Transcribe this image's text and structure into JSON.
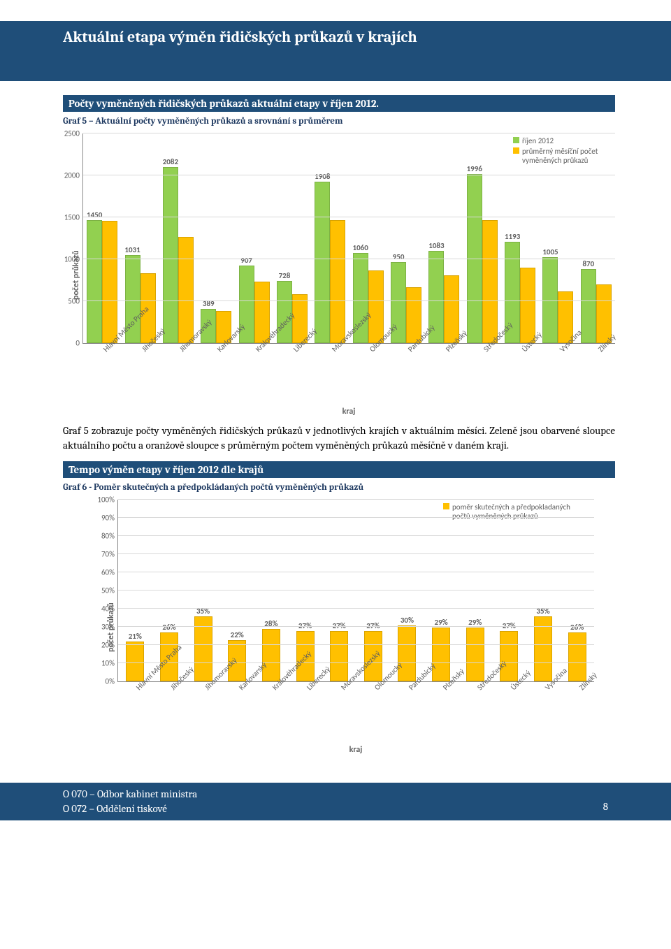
{
  "header_title": "Aktuální etapa výměn řidičských průkazů v krajích",
  "section1_title": "Počty vyměněných řidičských průkazů aktuální etapy v říjen 2012.",
  "caption1": "Graf 5 – Aktuální počty vyměněných průkazů a srovnání s průměrem",
  "chart5": {
    "ylabel": "počet průkazů",
    "xlabel": "kraj",
    "ymax": 2500,
    "ystep": 500,
    "color_green": "#92d050",
    "color_orange": "#ffc000",
    "legend": [
      {
        "label": "říjen 2012",
        "color": "#92d050"
      },
      {
        "label": "průměrný měsíční počet vyměněných průkazů",
        "color": "#ffc000"
      }
    ],
    "categories": [
      "Hlavní Město Praha",
      "Jihočeský",
      "Jihomoravský",
      "Karlovarský",
      "Královéhradecký",
      "Liberecký",
      "Moravskoslezský",
      "Olomoucký",
      "Pardubický",
      "Plzeňský",
      "Středočeský",
      "Ústecký",
      "Vysočina",
      "Zlínský"
    ],
    "green": [
      1450,
      1031,
      2082,
      389,
      907,
      728,
      1908,
      1060,
      950,
      1083,
      1996,
      1193,
      1005,
      870
    ],
    "orange": [
      1440,
      820,
      1250,
      370,
      720,
      570,
      1450,
      850,
      650,
      790,
      1450,
      880,
      600,
      680
    ],
    "green_label_show": [
      true,
      true,
      true,
      true,
      true,
      true,
      true,
      true,
      true,
      true,
      true,
      true,
      true,
      true
    ]
  },
  "body_text_after_chart5": "Graf 5 zobrazuje počty vyměněných řidičských průkazů v jednotlivých krajích v aktuálním měsíci. Zeleně jsou obarvené sloupce aktuálního počtu a oranžově sloupce s průměrným počtem vyměněných průkazů měsíčně v daném kraji.",
  "section2_title": "Tempo výměn etapy v říjen 2012 dle krajů",
  "caption2": "Graf 6 - Poměr skutečných a předpokládaných počtů vyměněných průkazů",
  "chart6": {
    "ylabel": "počet průkazů",
    "xlabel": "kraj",
    "ymax": 100,
    "ystep": 10,
    "color": "#ffc000",
    "legend_label": "poměr skutečných a předpokladaných počtů vyměněných průkazů",
    "categories": [
      "Hlavní Město Praha",
      "Jihočeský",
      "Jihomoravský",
      "Karlovarský",
      "Královéhradecký",
      "Liberecký",
      "Moravskoslezský",
      "Olomoucký",
      "Pardubický",
      "Plzeňský",
      "Středočeský",
      "Ústecký",
      "Vysočina",
      "Zlínský"
    ],
    "values": [
      21,
      26,
      35,
      22,
      28,
      27,
      27,
      27,
      30,
      29,
      29,
      27,
      35,
      26
    ]
  },
  "footer_line1": "O 070 – Odbor kabinet ministra",
  "footer_line2": "O 072 – Oddělení tiskové",
  "page_number": "8"
}
